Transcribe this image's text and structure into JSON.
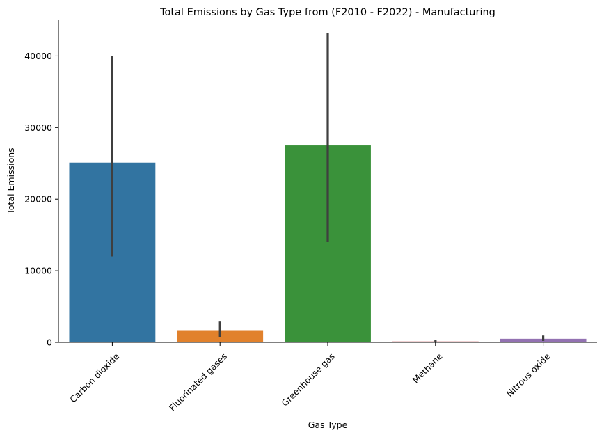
{
  "chart_data": {
    "type": "bar",
    "title": "Total Emissions by Gas Type from (F2010 - F2022) - Manufacturing",
    "xlabel": "Gas Type",
    "ylabel": "Total Emissions",
    "ylim": [
      0,
      45000
    ],
    "yticks": [
      0,
      10000,
      20000,
      30000,
      40000
    ],
    "ytick_labels": [
      "0",
      "10000",
      "20000",
      "30000",
      "40000"
    ],
    "categories": [
      "Carbon dioxide",
      "Fluorinated gases",
      "Greenhouse gas",
      "Methane",
      "Nitrous oxide"
    ],
    "values": [
      25100,
      1700,
      27500,
      120,
      500
    ],
    "error_low": [
      12000,
      700,
      14000,
      50,
      200
    ],
    "error_high": [
      40000,
      2900,
      43200,
      350,
      950
    ],
    "colors": [
      "#3274a1",
      "#e1812c",
      "#3a923a",
      "#c03d3e",
      "#9372b2"
    ],
    "grid": false,
    "legend": "none"
  }
}
